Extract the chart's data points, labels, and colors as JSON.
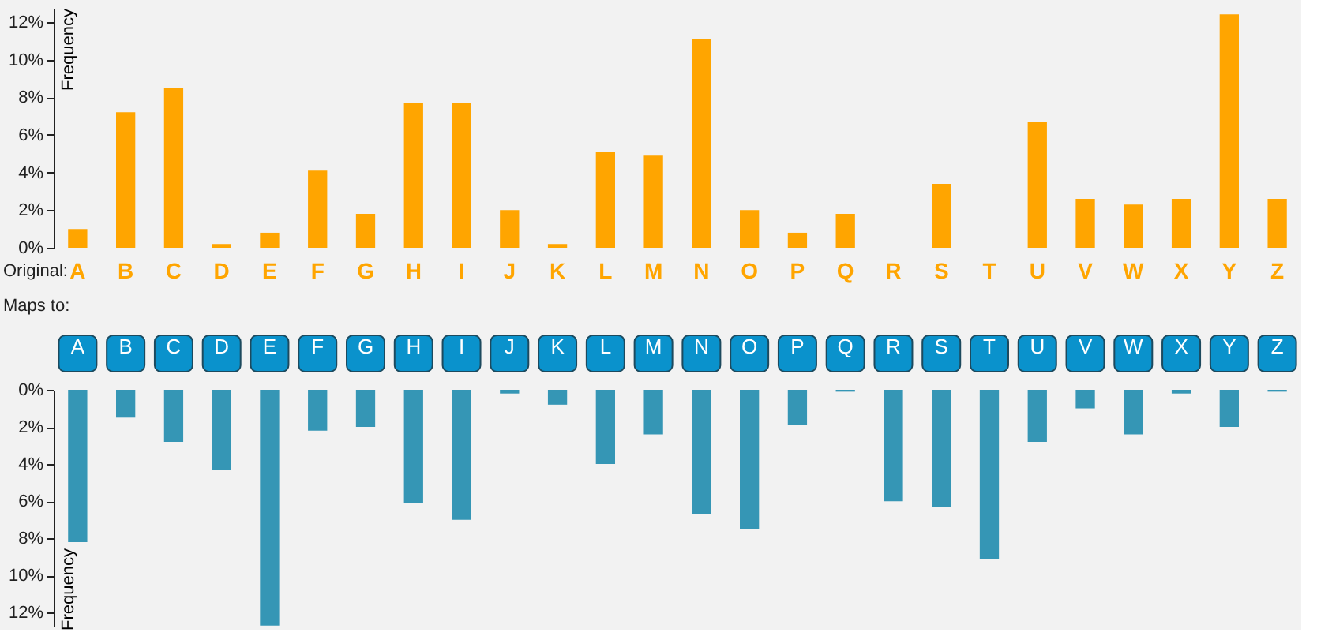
{
  "chart_data": [
    {
      "type": "bar",
      "xlabel": "Original:",
      "ylabel": "Frequency",
      "categories": [
        "A",
        "B",
        "C",
        "D",
        "E",
        "F",
        "G",
        "H",
        "I",
        "J",
        "K",
        "L",
        "M",
        "N",
        "O",
        "P",
        "Q",
        "R",
        "S",
        "T",
        "U",
        "V",
        "W",
        "X",
        "Y",
        "Z"
      ],
      "values": [
        1.0,
        7.2,
        8.5,
        0.2,
        0.8,
        4.1,
        1.8,
        7.7,
        7.7,
        2.0,
        0.2,
        5.1,
        4.9,
        11.1,
        2.0,
        0.8,
        1.8,
        0,
        3.4,
        0,
        6.7,
        2.6,
        2.3,
        2.6,
        12.4,
        2.6
      ],
      "color": "#ffa500",
      "ylim": [
        0,
        12.75
      ],
      "yticks": [
        {
          "value": 0,
          "label": "0%"
        },
        {
          "value": 2,
          "label": "2%"
        },
        {
          "value": 4,
          "label": "4%"
        },
        {
          "value": 6,
          "label": "6%"
        },
        {
          "value": 8,
          "label": "8%"
        },
        {
          "value": 10,
          "label": "10%"
        },
        {
          "value": 12,
          "label": "12%"
        }
      ],
      "grid": false
    },
    {
      "type": "bar",
      "xlabel": "Maps to:",
      "ylabel": "Frequency",
      "categories": [
        "A",
        "B",
        "C",
        "D",
        "E",
        "F",
        "G",
        "H",
        "I",
        "J",
        "K",
        "L",
        "M",
        "N",
        "O",
        "P",
        "Q",
        "R",
        "S",
        "T",
        "U",
        "V",
        "W",
        "X",
        "Y",
        "Z"
      ],
      "values": [
        8.2,
        1.5,
        2.8,
        4.3,
        12.7,
        2.2,
        2.0,
        6.1,
        7.0,
        0.2,
        0.8,
        4.0,
        2.4,
        6.7,
        7.5,
        1.9,
        0.1,
        6.0,
        6.3,
        9.1,
        2.8,
        1.0,
        2.4,
        0.2,
        2.0,
        0.1
      ],
      "color": "#3596b5",
      "ylim": [
        12.75,
        0
      ],
      "yticks": [
        {
          "value": 0,
          "label": "0%"
        },
        {
          "value": 2,
          "label": "2%"
        },
        {
          "value": 4,
          "label": "4%"
        },
        {
          "value": 6,
          "label": "6%"
        },
        {
          "value": 8,
          "label": "8%"
        },
        {
          "value": 10,
          "label": "10%"
        },
        {
          "value": 12,
          "label": "12%"
        }
      ],
      "grid": false
    }
  ]
}
